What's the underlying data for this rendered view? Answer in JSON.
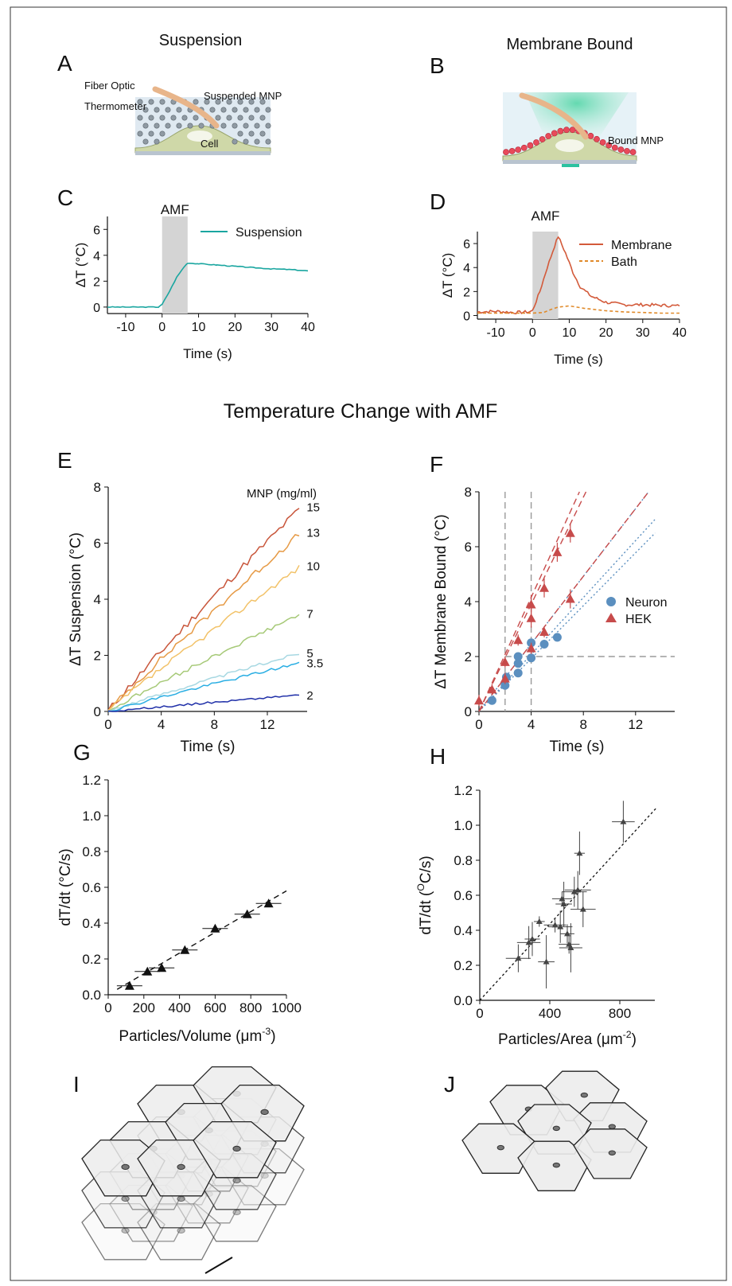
{
  "panels": {
    "A": {
      "letter": "A",
      "title": "Suspension",
      "labels": {
        "fiber": "Fiber Optic",
        "thermo": "Thermometer",
        "mnp": "Suspended MNP",
        "cell": "Cell"
      }
    },
    "B": {
      "letter": "B",
      "title": "Membrane Bound",
      "labels": {
        "mnp": "Bound MNP"
      }
    },
    "C": {
      "letter": "C"
    },
    "D": {
      "letter": "D"
    },
    "E": {
      "letter": "E"
    },
    "F": {
      "letter": "F"
    },
    "G": {
      "letter": "G"
    },
    "H": {
      "letter": "H"
    },
    "I": {
      "letter": "I"
    },
    "J": {
      "letter": "J"
    }
  },
  "section_title": "Temperature Change with AMF",
  "colors": {
    "suspension": "#1aa6a0",
    "membrane": "#d35a3a",
    "bath": "#e08a2a",
    "neuron": "#5b8fbf",
    "hek": "#c74b4b",
    "amf_shade": "#d4d4d4",
    "black": "#111111",
    "e_series": [
      "#c8553a",
      "#e69a45",
      "#f2c268",
      "#a6c977",
      "#a7d8e2",
      "#2aaee3",
      "#1f2fa8"
    ]
  },
  "chart_data": [
    {
      "id": "C",
      "type": "line",
      "annotation": "AMF",
      "amf_window": [
        0,
        7
      ],
      "xlabel": "Time (s)",
      "ylabel": "ΔT (°C)",
      "xlim": [
        -15,
        40
      ],
      "ylim": [
        -0.5,
        7
      ],
      "xticks": [
        "-10",
        "0",
        "10",
        "20",
        "30",
        "40"
      ],
      "yticks": [
        "0",
        "2",
        "4",
        "6"
      ],
      "series": [
        {
          "name": "Suspension",
          "x": [
            -15,
            -1,
            0,
            2,
            4,
            6,
            7,
            10,
            15,
            20,
            25,
            30,
            35,
            40
          ],
          "y": [
            0,
            0,
            0.2,
            1.2,
            2.3,
            3.1,
            3.4,
            3.35,
            3.25,
            3.15,
            3.05,
            2.95,
            2.9,
            2.8
          ]
        }
      ]
    },
    {
      "id": "D",
      "type": "line",
      "annotation": "AMF",
      "amf_window": [
        0,
        7
      ],
      "xlabel": "Time (s)",
      "ylabel": "ΔT (°C)",
      "xlim": [
        -15,
        40
      ],
      "ylim": [
        -0.3,
        7
      ],
      "xticks": [
        "-10",
        "0",
        "10",
        "20",
        "30",
        "40"
      ],
      "yticks": [
        "0",
        "2",
        "4",
        "6"
      ],
      "series": [
        {
          "name": "Membrane",
          "x": [
            -15,
            -10,
            -5,
            -1,
            0,
            2,
            4,
            6,
            7,
            9,
            11,
            13,
            16,
            20,
            25,
            30,
            35,
            40
          ],
          "y": [
            0.3,
            0.35,
            0.25,
            0.3,
            0.4,
            2.0,
            4.0,
            5.8,
            6.6,
            5.2,
            3.6,
            2.4,
            1.6,
            1.1,
            0.9,
            0.9,
            0.85,
            0.8
          ]
        },
        {
          "name": "Bath",
          "x": [
            -15,
            0,
            3,
            5,
            7,
            10,
            14,
            20,
            25,
            30,
            35,
            40
          ],
          "y": [
            0.2,
            0.2,
            0.25,
            0.5,
            0.7,
            0.8,
            0.6,
            0.4,
            0.3,
            0.25,
            0.2,
            0.2
          ]
        }
      ]
    },
    {
      "id": "E",
      "type": "line",
      "legend_title": "MNP (mg/ml)",
      "xlabel": "Time (s)",
      "ylabel": "ΔT Suspension (°C)",
      "xlim": [
        0,
        15
      ],
      "ylim": [
        0,
        8
      ],
      "xticks": [
        "0",
        "4",
        "8",
        "12"
      ],
      "yticks": [
        "0",
        "2",
        "4",
        "6",
        "8"
      ],
      "series": [
        {
          "name": "15",
          "end": 7.3
        },
        {
          "name": "13",
          "end": 6.4
        },
        {
          "name": "10",
          "end": 5.2
        },
        {
          "name": "7",
          "end": 3.5
        },
        {
          "name": "5",
          "end": 2.1
        },
        {
          "name": "3.5",
          "end": 1.75
        },
        {
          "name": "2",
          "end": 0.6
        }
      ]
    },
    {
      "id": "F",
      "type": "scatter",
      "xlabel": "Time (s)",
      "ylabel": "ΔT Membrane Bound (°C)",
      "xlim": [
        0,
        15
      ],
      "ylim": [
        0,
        8
      ],
      "xticks": [
        "0",
        "4",
        "8",
        "12"
      ],
      "yticks": [
        "0",
        "2",
        "4",
        "6",
        "8"
      ],
      "ref_v": [
        2,
        4
      ],
      "ref_h": 2,
      "series": [
        {
          "name": "Neuron",
          "marker": "circle",
          "points": [
            [
              1,
              0.4
            ],
            [
              2,
              0.95
            ],
            [
              2.1,
              1.25
            ],
            [
              3,
              1.4
            ],
            [
              3,
              1.75
            ],
            [
              3,
              2.0
            ],
            [
              4,
              1.95
            ],
            [
              4,
              2.5
            ],
            [
              5,
              2.45
            ],
            [
              6,
              2.7
            ]
          ],
          "fits": [
            [
              0,
              0,
              13.5,
              6.5
            ],
            [
              0,
              0,
              13.5,
              7.0
            ],
            [
              0,
              0,
              13,
              8
            ]
          ]
        },
        {
          "name": "HEK",
          "marker": "triangle",
          "points": [
            [
              0,
              0.4
            ],
            [
              1,
              0.8
            ],
            [
              2,
              1.2
            ],
            [
              2,
              1.8
            ],
            [
              3,
              2.6
            ],
            [
              4,
              2.3
            ],
            [
              4,
              3.4
            ],
            [
              4,
              3.9
            ],
            [
              5,
              2.9
            ],
            [
              5,
              4.5
            ],
            [
              6,
              5.8
            ],
            [
              7,
              6.5
            ],
            [
              7,
              4.1
            ]
          ],
          "fits": [
            [
              0,
              0,
              8.2,
              8
            ],
            [
              0,
              0,
              7.7,
              8
            ],
            [
              0,
              0,
              13,
              8
            ]
          ]
        }
      ]
    },
    {
      "id": "G",
      "type": "scatter",
      "xlabel": "Particles/Volume (μm",
      "xlabel_sup": "-3",
      "xlabel_end": ")",
      "ylabel": "dT/dt (°C/s)",
      "xlim": [
        0,
        1000
      ],
      "ylim": [
        0,
        1.2
      ],
      "xticks": [
        "0",
        "200",
        "400",
        "600",
        "800",
        "1000"
      ],
      "yticks": [
        "0.0",
        "0.2",
        "0.4",
        "0.6",
        "0.8",
        "1.0",
        "1.2"
      ],
      "points": [
        [
          120,
          0.05
        ],
        [
          220,
          0.13
        ],
        [
          300,
          0.15
        ],
        [
          430,
          0.25
        ],
        [
          600,
          0.37
        ],
        [
          780,
          0.45
        ],
        [
          900,
          0.51
        ]
      ],
      "fit": [
        [
          50,
          0.03
        ],
        [
          1000,
          0.58
        ]
      ]
    },
    {
      "id": "H",
      "type": "scatter",
      "xlabel": "Particles/Area (μm",
      "xlabel_sup": "-2",
      "xlabel_end": ")",
      "ylabel": "dT/dt (",
      "ylabel_sup": "O",
      "ylabel_end": "C/s)",
      "xlim": [
        0,
        1000
      ],
      "ylim": [
        0,
        1.2
      ],
      "xticks": [
        "0",
        "400",
        "800"
      ],
      "yticks": [
        "0.0",
        "0.2",
        "0.4",
        "0.6",
        "0.8",
        "1.0",
        "1.2"
      ],
      "points": [
        [
          220,
          0.24
        ],
        [
          280,
          0.33
        ],
        [
          300,
          0.35
        ],
        [
          340,
          0.45
        ],
        [
          380,
          0.22
        ],
        [
          430,
          0.43
        ],
        [
          460,
          0.42
        ],
        [
          470,
          0.58
        ],
        [
          480,
          0.55
        ],
        [
          500,
          0.38
        ],
        [
          510,
          0.32
        ],
        [
          520,
          0.3
        ],
        [
          540,
          0.62
        ],
        [
          560,
          0.63
        ],
        [
          570,
          0.84
        ],
        [
          590,
          0.52
        ],
        [
          820,
          1.02
        ]
      ],
      "fit": [
        [
          0,
          0
        ],
        [
          1010,
          1.1
        ]
      ]
    }
  ]
}
